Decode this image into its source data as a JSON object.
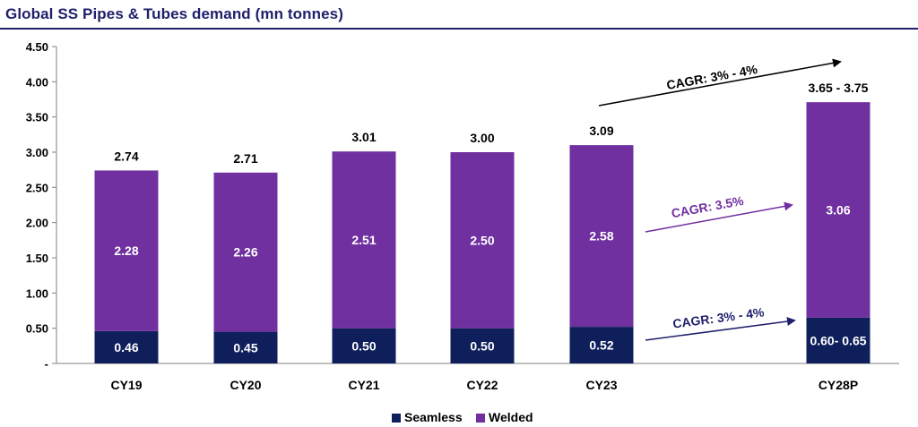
{
  "chart_data": {
    "type": "bar",
    "stacked": true,
    "title": "Global SS Pipes & Tubes demand (mn tonnes)",
    "categories": [
      "CY19",
      "CY20",
      "CY21",
      "CY22",
      "CY23",
      "CY28P"
    ],
    "series": [
      {
        "name": "Seamless",
        "color": "#0f1f5c",
        "values": [
          0.46,
          0.45,
          0.5,
          0.5,
          0.52,
          0.65
        ],
        "labels": [
          "0.46",
          "0.45",
          "0.50",
          "0.50",
          "0.52",
          "0.60- 0.65"
        ]
      },
      {
        "name": "Welded",
        "color": "#7030a0",
        "values": [
          2.28,
          2.26,
          2.51,
          2.5,
          2.58,
          3.06
        ],
        "labels": [
          "2.28",
          "2.26",
          "2.51",
          "2.50",
          "2.58",
          "3.06"
        ]
      }
    ],
    "totals": [
      "2.74",
      "2.71",
      "3.01",
      "3.00",
      "3.09",
      "3.65 -  3.75"
    ],
    "yticks": [
      "-",
      "0.50",
      "1.00",
      "1.50",
      "2.00",
      "2.50",
      "3.00",
      "3.50",
      "4.00",
      "4.50"
    ],
    "ylim": [
      0,
      4.5
    ],
    "legend_position": "bottom",
    "annotations": [
      {
        "text": "CAGR: 3% - 4%",
        "color": "#000000",
        "applies_to": "total"
      },
      {
        "text": "CAGR: 3.5%",
        "color": "#7030a0",
        "applies_to": "Welded"
      },
      {
        "text": "CAGR: 3% - 4%",
        "color": "#1f1f6b",
        "applies_to": "Seamless"
      }
    ]
  }
}
